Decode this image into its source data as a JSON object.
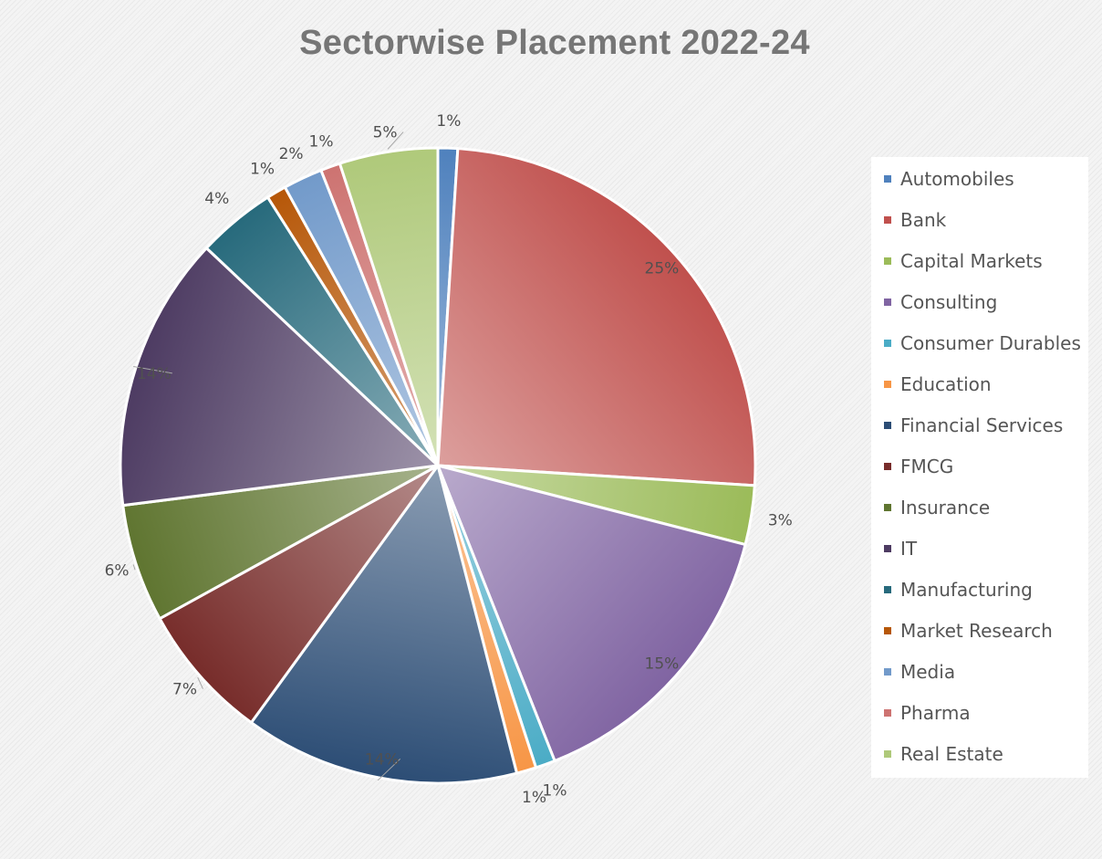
{
  "chart_data": {
    "type": "pie",
    "title": "Sectorwise Placement 2022-24",
    "legend_position": "right",
    "categories": [
      "Automobiles",
      "Bank",
      "Capital Markets",
      "Consulting",
      "Consumer Durables",
      "Education",
      "Financial Services",
      "FMCG",
      "Insurance",
      "IT",
      "Manufacturing",
      "Market Research",
      "Media",
      "Pharma",
      "Real Estate"
    ],
    "values": [
      1,
      25,
      3,
      15,
      1,
      1,
      14,
      7,
      6,
      14,
      4,
      1,
      2,
      1,
      5
    ],
    "labels": [
      "1%",
      "25%",
      "3%",
      "15%",
      "1%",
      "1%",
      "14%",
      "7%",
      "6%",
      "14%",
      "4%",
      "1%",
      "2%",
      "1%",
      "5%"
    ],
    "colors": [
      "#4f81bd",
      "#c0504d",
      "#9bbb59",
      "#8064a2",
      "#4bacc6",
      "#f79646",
      "#2c4d75",
      "#772c2a",
      "#5f7530",
      "#4d3b62",
      "#276a7c",
      "#b65708",
      "#729aca",
      "#cd7371",
      "#afc97a"
    ]
  }
}
